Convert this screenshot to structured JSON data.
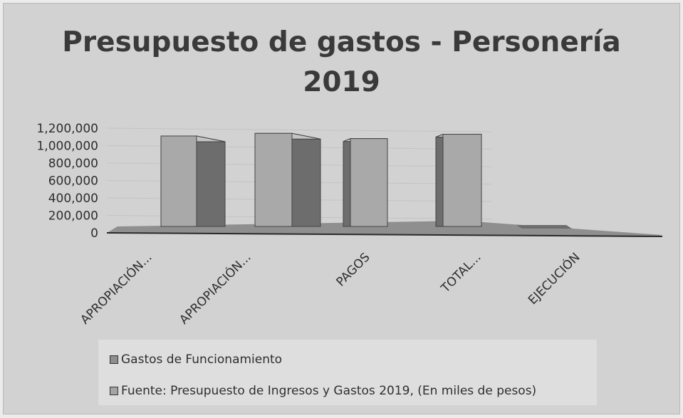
{
  "chart_data": {
    "type": "bar",
    "title": "Presupuesto de gastos - Personería 2019",
    "title_lines": [
      "Presupuesto de gastos - Personería",
      "2019"
    ],
    "categories": [
      "APROPIACIÓN...",
      "APROPIACIÓN...",
      "PAGOS",
      "TOTAL...",
      "EJECUCIÓN"
    ],
    "series": [
      {
        "name": "Gastos de Funcionamiento",
        "values": [
          1030000,
          1060000,
          1000000,
          1050000,
          0
        ]
      }
    ],
    "legend": [
      "Gastos de Funcionamiento",
      "Fuente: Presupuesto de Ingresos y Gastos 2019, (En miles de pesos)"
    ],
    "y_ticks": [
      "1,200,000",
      "1,000,000",
      "800,000",
      "600,000",
      "400,000",
      "200,000",
      "0"
    ],
    "ylim": [
      0,
      1200000
    ],
    "grid": true,
    "legend_position": "bottom",
    "colors": {
      "bar_front": "#a9a9a9",
      "bar_side": "#6d6d6d",
      "bar_top": "#c4c4c4",
      "floor": "#8f8f8f"
    }
  }
}
